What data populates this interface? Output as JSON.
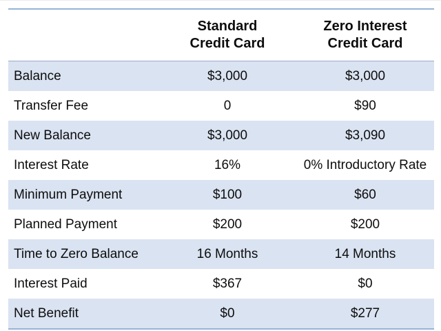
{
  "table": {
    "headers": {
      "standard": {
        "line1": "Standard",
        "line2": "Credit Card"
      },
      "zero_interest": {
        "line1": "Zero Interest",
        "line2": "Credit Card"
      }
    },
    "rows": [
      {
        "label": "Balance",
        "standard": "$3,000",
        "zero_interest": "$3,000"
      },
      {
        "label": "Transfer Fee",
        "standard": "0",
        "zero_interest": "$90"
      },
      {
        "label": "New Balance",
        "standard": "$3,000",
        "zero_interest": "$3,090"
      },
      {
        "label": "Interest Rate",
        "standard": "16%",
        "zero_interest": "0% Introductory Rate"
      },
      {
        "label": "Minimum Payment",
        "standard": "$100",
        "zero_interest": "$60"
      },
      {
        "label": "Planned Payment",
        "standard": "$200",
        "zero_interest": "$200"
      },
      {
        "label": "Time to Zero Balance",
        "standard": "16 Months",
        "zero_interest": "14 Months"
      },
      {
        "label": "Interest Paid",
        "standard": "$367",
        "zero_interest": "$0"
      },
      {
        "label": "Net Benefit",
        "standard": "$0",
        "zero_interest": "$277"
      }
    ]
  },
  "colors": {
    "band_blue": "#dae3f1",
    "rule_blue": "#95b3d7",
    "header_separator": "#9badc6",
    "text": "#0d0d0d",
    "background": "#ffffff"
  }
}
